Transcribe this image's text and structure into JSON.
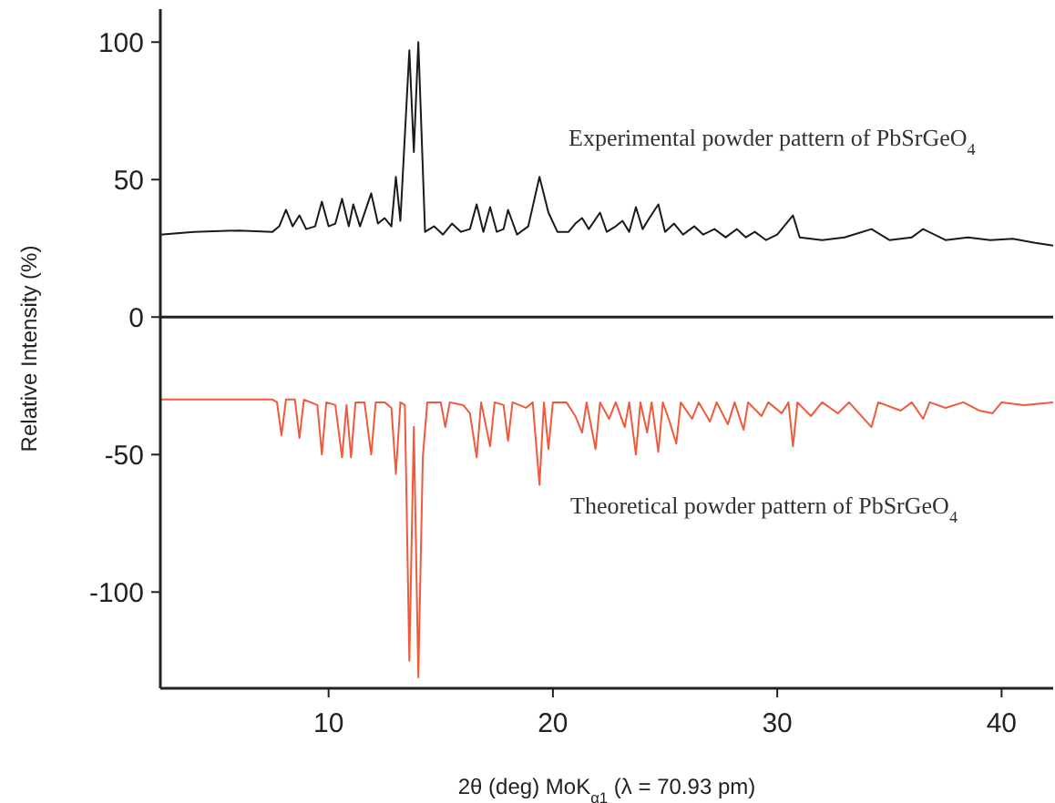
{
  "chart_data": {
    "type": "line",
    "xlabel": "2θ (deg) MoK$_{α1}$ (λ = 70.93 pm)",
    "ylabel": "Relative Intensity (%)",
    "xlim": [
      2.5,
      42.3
    ],
    "xticks": [
      10,
      20,
      30,
      40
    ],
    "ylim": [
      -135,
      112
    ],
    "yticks": [
      -100,
      -50,
      0,
      50,
      100
    ],
    "grid": false,
    "marker": "none",
    "line_style": "solid",
    "ref_lines": [
      {
        "axis": "y",
        "value": 0,
        "color": "#222222"
      }
    ],
    "series": [
      {
        "name": "Experimental powder pattern of PbSrGeO$_{4}$",
        "color": "#1a1a1a",
        "x": [
          2.5,
          4,
          6,
          7.5,
          7.8,
          8.1,
          8.4,
          8.7,
          9.0,
          9.4,
          9.7,
          10.0,
          10.3,
          10.6,
          10.9,
          11.1,
          11.4,
          11.9,
          12.2,
          12.5,
          12.8,
          13.0,
          13.2,
          13.6,
          13.8,
          14.0,
          14.3,
          14.7,
          15.1,
          15.5,
          15.9,
          16.3,
          16.6,
          16.9,
          17.2,
          17.5,
          17.8,
          18.0,
          18.4,
          18.9,
          19.4,
          19.8,
          20.2,
          20.7,
          21.0,
          21.3,
          21.6,
          22.1,
          22.4,
          22.8,
          23.1,
          23.4,
          23.7,
          24.0,
          24.3,
          24.7,
          25.0,
          25.4,
          25.8,
          26.3,
          26.7,
          27.2,
          27.7,
          28.2,
          28.6,
          29.0,
          29.5,
          30.0,
          30.7,
          31.0,
          32,
          33,
          34.2,
          35,
          36,
          36.5,
          37.5,
          38.5,
          39.5,
          40.5,
          41.5,
          42.3
        ],
        "values": [
          30,
          31,
          31.5,
          31,
          33,
          39,
          33,
          37,
          32,
          33,
          42,
          33,
          34,
          43,
          33,
          41,
          33,
          45,
          34,
          36,
          33,
          51,
          35,
          97,
          60,
          100,
          31,
          33,
          30,
          34,
          31,
          32,
          41,
          31,
          40,
          31,
          32,
          39,
          30,
          33,
          51,
          38,
          31,
          31,
          34,
          36,
          32,
          38,
          31,
          33,
          35,
          31,
          40,
          32,
          36,
          41,
          31,
          34,
          30,
          33,
          30,
          32,
          29,
          32,
          29,
          31,
          28,
          30,
          37,
          29,
          28,
          29,
          32,
          28,
          29,
          32,
          28,
          29,
          28,
          28.5,
          27,
          26
        ]
      },
      {
        "name": "Theoretical powder pattern of PbSrGeO$_{4}$",
        "color": "#f05a3c",
        "x": [
          2.5,
          7.5,
          7.7,
          7.9,
          8.1,
          8.5,
          8.7,
          8.9,
          9.5,
          9.7,
          9.9,
          10.3,
          10.6,
          10.8,
          11.0,
          11.2,
          11.6,
          11.9,
          12.1,
          12.5,
          12.8,
          13.0,
          13.2,
          13.4,
          13.6,
          13.8,
          14.0,
          14.2,
          14.4,
          15.0,
          15.2,
          15.4,
          16.0,
          16.3,
          16.6,
          16.8,
          17.2,
          17.4,
          17.8,
          18.0,
          18.2,
          18.8,
          19.1,
          19.4,
          19.6,
          19.8,
          20.0,
          20.6,
          21.0,
          21.3,
          21.5,
          21.9,
          22.1,
          22.5,
          22.8,
          23.2,
          23.4,
          23.7,
          23.9,
          24.2,
          24.4,
          24.7,
          24.9,
          25.2,
          25.5,
          25.7,
          26.2,
          26.5,
          27.0,
          27.3,
          27.8,
          28.1,
          28.5,
          28.7,
          29.3,
          29.6,
          30.2,
          30.5,
          30.7,
          30.9,
          31.5,
          32,
          32.7,
          33.2,
          34.2,
          34.5,
          35.5,
          36,
          36.5,
          36.8,
          37.5,
          38.3,
          39.0,
          39.6,
          40,
          41,
          42.3
        ],
        "values": [
          -30,
          -30,
          -31,
          -43,
          -30,
          -30,
          -44,
          -30,
          -32,
          -50,
          -31,
          -32,
          -51,
          -32,
          -51,
          -31,
          -31,
          -50,
          -31,
          -31,
          -33,
          -57,
          -31,
          -32,
          -125,
          -40,
          -131,
          -51,
          -31,
          -31,
          -40,
          -31,
          -32,
          -35,
          -51,
          -31,
          -47,
          -31,
          -32,
          -45,
          -31,
          -33,
          -31,
          -61,
          -31,
          -48,
          -31,
          -31,
          -36,
          -42,
          -31,
          -48,
          -31,
          -37,
          -31,
          -40,
          -31,
          -50,
          -31,
          -42,
          -31,
          -49,
          -31,
          -38,
          -46,
          -31,
          -37,
          -31,
          -38,
          -31,
          -39,
          -31,
          -41,
          -31,
          -36,
          -31,
          -35,
          -31,
          -47,
          -31,
          -36,
          -31,
          -35,
          -31,
          -40,
          -31,
          -34,
          -31,
          -37,
          -31,
          -33,
          -31,
          -34,
          -35,
          -31,
          -32,
          -31
        ]
      }
    ]
  }
}
